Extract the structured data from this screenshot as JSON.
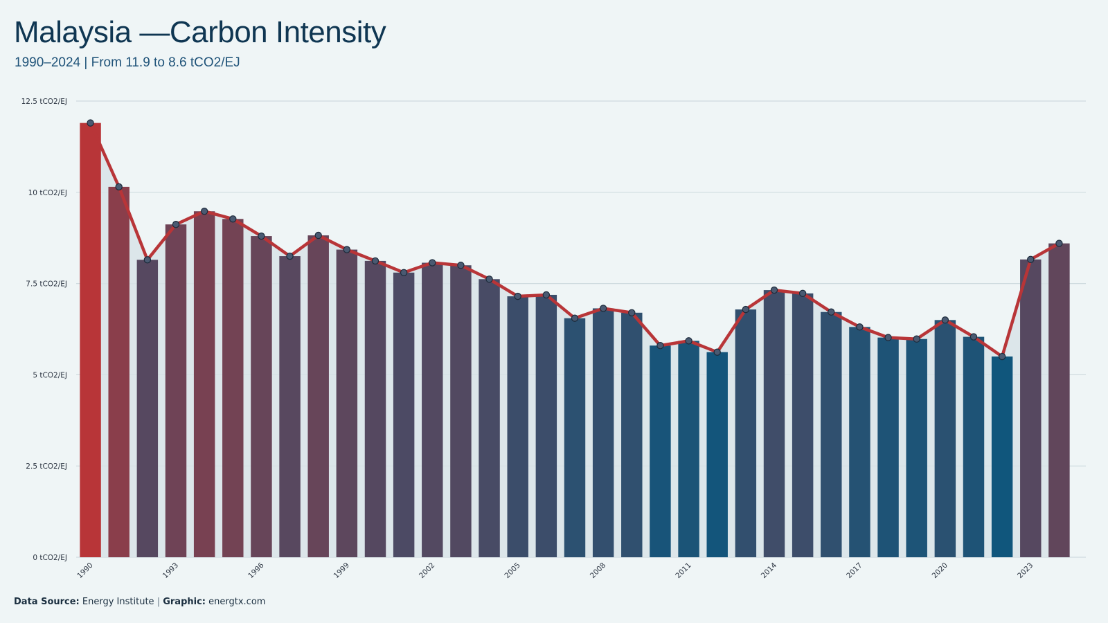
{
  "header": {
    "title": "Malaysia —Carbon Intensity",
    "subtitle": "1990–2024 | From 11.9 to 8.6 tCO2/EJ"
  },
  "footer": {
    "source_label": "Data Source:",
    "source_value": "Energy Institute",
    "separator": "|",
    "graphic_label": "Graphic:",
    "graphic_value": "energtx.com"
  },
  "colors": {
    "background": "#eff5f6",
    "high": "#b83538",
    "low": "#10567c",
    "line": "#b83538",
    "marker_fill": "#4a5a72",
    "marker_stroke": "#1c2a3a",
    "area_fill": "#d8e3e7",
    "grid": "#cfdbdf"
  },
  "chart_data": {
    "type": "bar",
    "title": "Malaysia —Carbon Intensity",
    "subtitle": "1990–2024 | From 11.9 to 8.6 tCO2/EJ",
    "xlabel": "",
    "ylabel": "",
    "ylim": [
      0,
      12.5
    ],
    "y_ticks": [
      0,
      2.5,
      5,
      7.5,
      10,
      12.5
    ],
    "y_tick_labels": [
      "0 tCO2/EJ",
      "2.5 tCO2/EJ",
      "5 tCO2/EJ",
      "7.5 tCO2/EJ",
      "10 tCO2/EJ",
      "12.5 tCO2/EJ"
    ],
    "x_tick_labels": [
      "1990",
      "1993",
      "1996",
      "1999",
      "2002",
      "2005",
      "2008",
      "2011",
      "2014",
      "2017",
      "2020",
      "2023"
    ],
    "grid": true,
    "overlay": "line with markers",
    "x": [
      1990,
      1991,
      1992,
      1993,
      1994,
      1995,
      1996,
      1997,
      1998,
      1999,
      2000,
      2001,
      2002,
      2003,
      2004,
      2005,
      2006,
      2007,
      2008,
      2009,
      2010,
      2011,
      2012,
      2013,
      2014,
      2015,
      2016,
      2017,
      2018,
      2019,
      2020,
      2021,
      2022,
      2023,
      2024
    ],
    "values": [
      11.9,
      10.15,
      8.15,
      9.12,
      9.48,
      9.27,
      8.8,
      8.25,
      8.82,
      8.43,
      8.12,
      7.8,
      8.07,
      8.0,
      7.62,
      7.15,
      7.19,
      6.55,
      6.82,
      6.7,
      5.8,
      5.93,
      5.62,
      6.79,
      7.32,
      7.23,
      6.72,
      6.31,
      6.02,
      5.98,
      6.5,
      6.04,
      5.5,
      8.16,
      8.6
    ]
  }
}
